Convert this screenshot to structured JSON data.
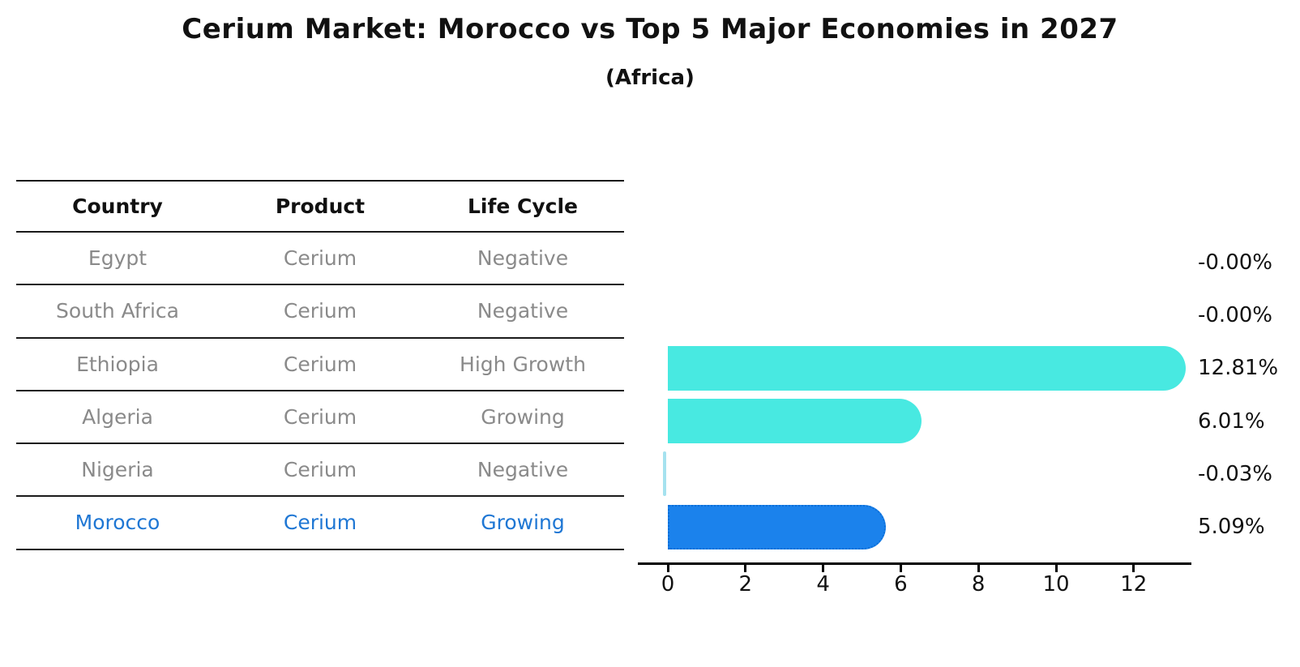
{
  "figure": {
    "title": "Cerium Market: Morocco vs Top 5 Major Economies in 2027",
    "subtitle": "(Africa)"
  },
  "table": {
    "columns": [
      "Country",
      "Product",
      "Life Cycle"
    ],
    "rows": [
      {
        "country": "Egypt",
        "product": "Cerium",
        "life_cycle": "Negative",
        "highlighted": false
      },
      {
        "country": "South Africa",
        "product": "Cerium",
        "life_cycle": "Negative",
        "highlighted": false
      },
      {
        "country": "Ethiopia",
        "product": "Cerium",
        "life_cycle": "High Growth",
        "highlighted": false
      },
      {
        "country": "Algeria",
        "product": "Cerium",
        "life_cycle": "Growing",
        "highlighted": false
      },
      {
        "country": "Nigeria",
        "product": "Cerium",
        "life_cycle": "Negative",
        "highlighted": false
      },
      {
        "country": "Morocco",
        "product": "Cerium",
        "life_cycle": "Growing",
        "highlighted": true
      }
    ]
  },
  "chart_data": {
    "type": "bar",
    "orientation": "horizontal",
    "title": "Cerium Market: Morocco vs Top 5 Major Economies in 2027",
    "subtitle": "(Africa)",
    "categories": [
      "Egypt",
      "South Africa",
      "Ethiopia",
      "Algeria",
      "Nigeria",
      "Morocco"
    ],
    "values": [
      -0.0,
      -0.0,
      12.81,
      6.01,
      -0.03,
      5.09
    ],
    "value_labels": [
      "-0.00%",
      "-0.00%",
      "12.81%",
      "6.01%",
      "-0.03%",
      "5.09%"
    ],
    "xlabel": "",
    "ylabel": "",
    "xlim": [
      -0.8,
      13.5
    ],
    "xticks": [
      0,
      2,
      4,
      6,
      8,
      10,
      12
    ],
    "grid": false,
    "legend": false,
    "highlight_index": 5,
    "colors": {
      "bar": "#48e9e1",
      "bar_highlight": "#1b82ec",
      "bar_highlight_edge": "#0d6fd8",
      "bar_negative_sliver": "#a5e2ef",
      "row_text": "#8a8a8a",
      "highlight_text": "#1f77d4",
      "axis": "#000000",
      "value_label": "#111111"
    }
  }
}
